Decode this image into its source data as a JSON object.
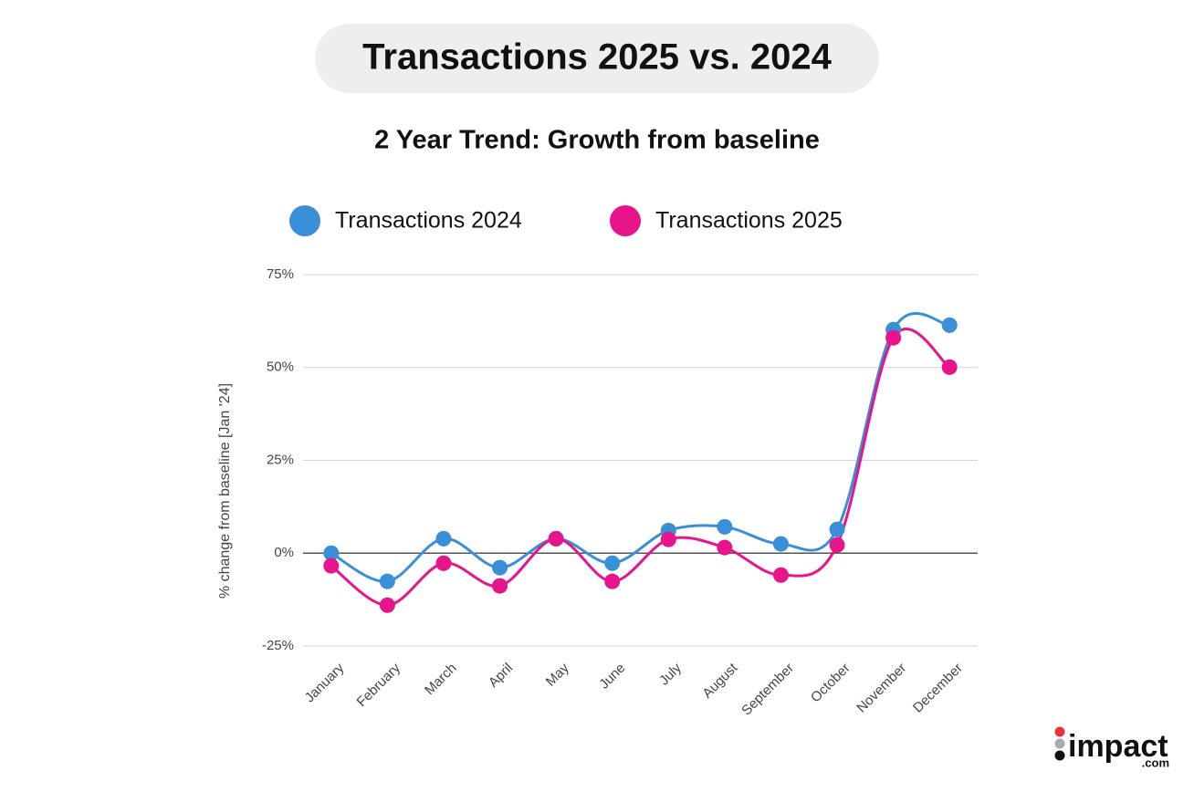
{
  "chart_data": {
    "type": "line",
    "title": "Transactions 2025 vs. 2024",
    "subtitle": "2 Year Trend: Growth from baseline",
    "y_label": "% change from baseline [Jan '24]",
    "categories": [
      "January",
      "February",
      "March",
      "April",
      "May",
      "June",
      "July",
      "August",
      "September",
      "October",
      "November",
      "December"
    ],
    "series": [
      {
        "name": "Transactions 2024",
        "color": "#3a8fd9",
        "values": [
          0,
          -7.6,
          3.9,
          -3.9,
          3.9,
          -2.7,
          6.1,
          7.1,
          2.5,
          6.4,
          60.2,
          61.4
        ]
      },
      {
        "name": "Transactions 2025",
        "color": "#e8148c",
        "values": [
          -3.4,
          -14,
          -2.7,
          -8.8,
          3.9,
          -7.6,
          3.7,
          1.5,
          -5.9,
          2.2,
          58,
          50.1
        ]
      }
    ],
    "ylim": [
      -25,
      75
    ],
    "yticks": [
      {
        "value": -25,
        "label": "-25%"
      },
      {
        "value": 0,
        "label": "0%"
      },
      {
        "value": 25,
        "label": "25%"
      },
      {
        "value": 50,
        "label": "50%"
      },
      {
        "value": 75,
        "label": "75%"
      }
    ],
    "grid": true,
    "smooth": true,
    "legend_position": "top"
  },
  "logo": {
    "text": "impact",
    "suffix": ".com"
  }
}
